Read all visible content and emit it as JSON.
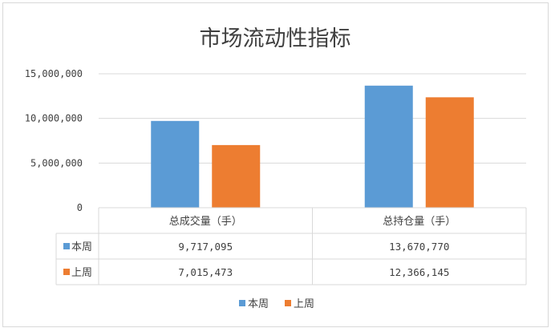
{
  "chart_data": {
    "type": "bar",
    "title": "市场流动性指标",
    "categories": [
      "总成交量（手）",
      "总持仓量（手）"
    ],
    "series": [
      {
        "name": "本周",
        "color": "#5B9BD5",
        "values": [
          9717095,
          13670770
        ],
        "labels": [
          "9,717,095",
          "13,670,770"
        ]
      },
      {
        "name": "上周",
        "color": "#ED7D31",
        "values": [
          7015473,
          12366145
        ],
        "labels": [
          "7,015,473",
          "12,366,145"
        ]
      }
    ],
    "yticks": [
      0,
      5000000,
      10000000,
      15000000
    ],
    "ytick_labels": [
      "0",
      "5,000,000",
      "10,000,000",
      "15,000,000"
    ],
    "ylim": [
      0,
      15000000
    ],
    "grid": true,
    "data_table": true,
    "legend": "bottom"
  }
}
